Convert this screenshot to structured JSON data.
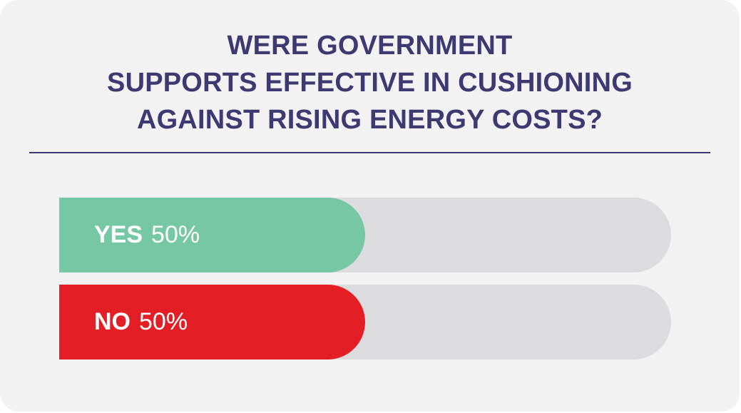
{
  "chart_data": {
    "type": "bar",
    "orientation": "horizontal",
    "title_lines": [
      "WERE GOVERNMENT",
      "SUPPORTS EFFECTIVE IN CUSHIONING",
      "AGAINST RISING ENERGY COSTS?"
    ],
    "categories": [
      "YES",
      "NO"
    ],
    "values": [
      50,
      50
    ],
    "value_labels": [
      "50%",
      "50%"
    ],
    "colors": [
      "#76c7a3",
      "#e31e24"
    ],
    "track_color": "#dcdcde",
    "xlim": [
      0,
      100
    ],
    "grid": false,
    "legend": "none"
  },
  "colors": {
    "background": "#f2f2f3",
    "title": "#3d3a72",
    "divider": "#3d3a72"
  }
}
